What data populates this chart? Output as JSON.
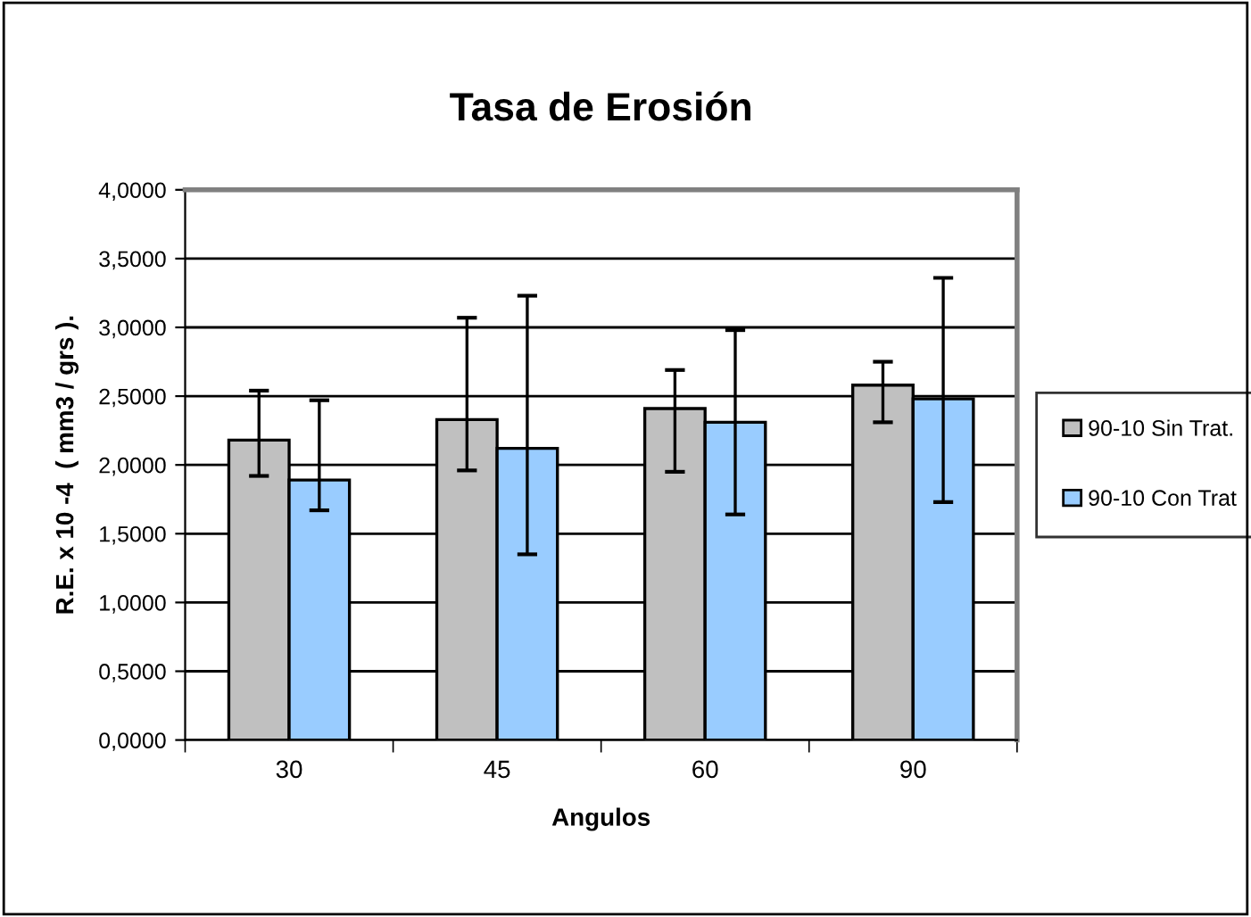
{
  "chart_data": {
    "type": "bar",
    "title": "Tasa de Erosión",
    "xlabel": "Angulos",
    "ylabel": "R.E. x 10 -4  ( mm3 / grs ).",
    "categories": [
      "30",
      "45",
      "60",
      "90"
    ],
    "series": [
      {
        "name": "90-10 Sin Trat.",
        "color": "#c0c0c0",
        "values": [
          2.18,
          2.33,
          2.41,
          2.58
        ],
        "errors": [
          [
            1.92,
            2.54
          ],
          [
            1.96,
            3.07
          ],
          [
            1.95,
            2.69
          ],
          [
            2.31,
            2.75
          ]
        ]
      },
      {
        "name": "90-10 Con Trat",
        "color": "#99ccff",
        "values": [
          1.89,
          2.12,
          2.31,
          2.48
        ],
        "errors": [
          [
            1.67,
            2.47
          ],
          [
            1.35,
            3.23
          ],
          [
            1.64,
            2.98
          ],
          [
            1.73,
            3.36
          ]
        ]
      }
    ],
    "ylim": [
      0,
      4
    ],
    "yticks": [
      {
        "value": 0,
        "label": "0,0000"
      },
      {
        "value": 0.5,
        "label": "0,5000"
      },
      {
        "value": 1,
        "label": "1,0000"
      },
      {
        "value": 1.5,
        "label": "1,5000"
      },
      {
        "value": 2,
        "label": "2,0000"
      },
      {
        "value": 2.5,
        "label": "2,5000"
      },
      {
        "value": 3,
        "label": "3,0000"
      },
      {
        "value": 3.5,
        "label": "3,5000"
      },
      {
        "value": 4,
        "label": "4,0000"
      }
    ],
    "grid": "y",
    "legend": "right"
  }
}
